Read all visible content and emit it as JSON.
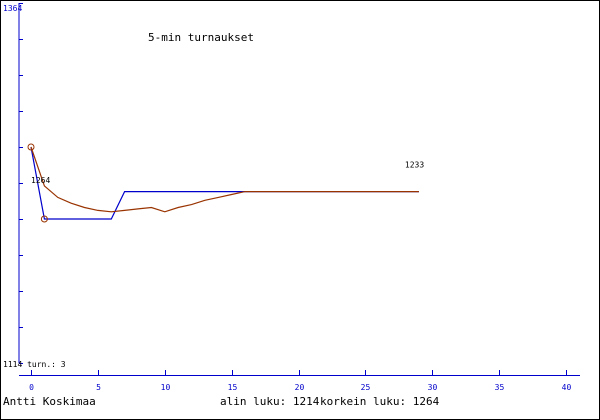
{
  "chart_data": {
    "type": "line",
    "title": "5-min turnaukset",
    "y_top_label": "1364",
    "bottom_left_text": "1114 turn.: 3",
    "ylim": [
      1114,
      1364
    ],
    "xlim": [
      0,
      40
    ],
    "x_ticks": [
      0,
      5,
      10,
      15,
      20,
      25,
      30,
      35,
      40
    ],
    "y_ticks": [
      1114,
      1139,
      1164,
      1189,
      1214,
      1239,
      1264,
      1289,
      1314,
      1339,
      1364
    ],
    "colors": {
      "border": "#000000",
      "axis": "#0000cc",
      "blue_series": "#0000cc",
      "red_series": "#993300",
      "marker": "#993300"
    },
    "series": [
      {
        "color_key": "blue_series",
        "x": [
          0,
          1,
          6,
          7,
          16,
          29
        ],
        "y": [
          1264,
          1214,
          1214,
          1233,
          1233,
          1233
        ]
      },
      {
        "color_key": "red_series",
        "x": [
          0,
          1,
          2,
          3,
          4,
          5,
          6,
          7,
          8,
          9,
          10,
          11,
          12,
          13,
          14,
          15,
          16,
          17,
          18,
          19,
          20,
          21,
          22,
          23,
          24,
          25,
          26,
          27,
          28,
          29
        ],
        "y": [
          1264,
          1237,
          1229,
          1225,
          1222,
          1220,
          1219,
          1220,
          1221,
          1222,
          1219,
          1222,
          1224,
          1227,
          1229,
          1231,
          1233,
          1233,
          1233,
          1233,
          1233,
          1233,
          1233,
          1233,
          1233,
          1233,
          1233,
          1233,
          1233,
          1233
        ]
      }
    ],
    "markers": [
      {
        "x": 0,
        "y": 1264
      },
      {
        "x": 1,
        "y": 1214
      }
    ],
    "annotations": [
      {
        "text": "1264",
        "x": 0,
        "y": 1264
      },
      {
        "text": "1233",
        "x": 29,
        "y": 1233
      }
    ]
  },
  "footer": {
    "author": "Antti Koskimaa",
    "min_label": "alin luku: 1214",
    "max_label": "korkein luku: 1264"
  }
}
